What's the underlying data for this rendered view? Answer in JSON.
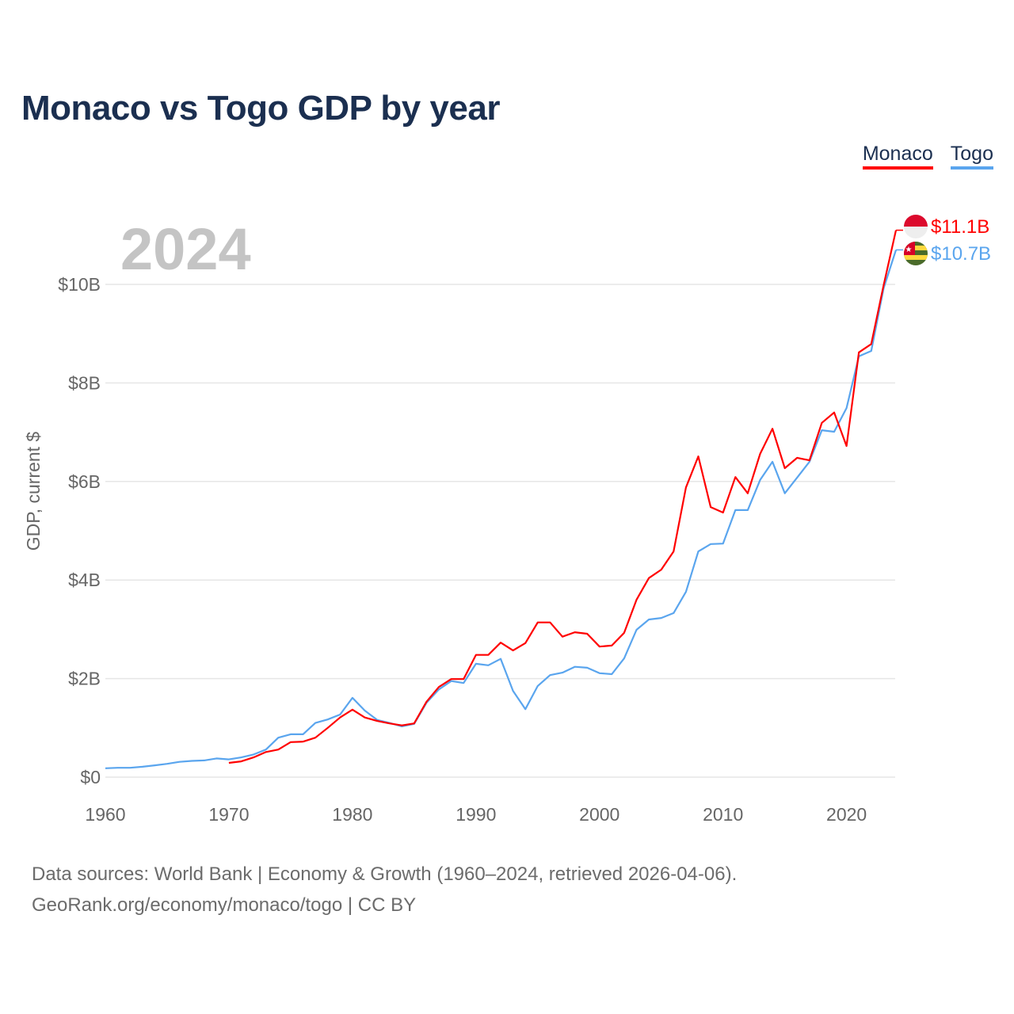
{
  "header": {
    "title": "Monaco vs Togo GDP by year"
  },
  "legend": {
    "monaco": "Monaco",
    "togo": "Togo"
  },
  "current_year": "2024",
  "end_labels": {
    "monaco": "$11.1B",
    "togo": "$10.7B"
  },
  "footer": {
    "line1": "Data sources: World Bank | Economy & Growth (1960–2024, retrieved 2026-04-06).",
    "line2": "GeoRank.org/economy/monaco/togo | CC BY"
  },
  "chart_data": {
    "type": "line",
    "title": "Monaco vs Togo GDP by year",
    "xlabel": "",
    "ylabel": "GDP, current $",
    "xlim": [
      1960,
      2024
    ],
    "ylim": [
      0,
      11.5
    ],
    "x_ticks": [
      1960,
      1970,
      1980,
      1990,
      2000,
      2010,
      2020
    ],
    "x_tick_labels": [
      "1960",
      "1970",
      "1980",
      "1990",
      "2000",
      "2010",
      "2020"
    ],
    "y_ticks": [
      0,
      2,
      4,
      6,
      8,
      10
    ],
    "y_tick_labels": [
      "$0",
      "$2B",
      "$4B",
      "$6B",
      "$8B",
      "$10B"
    ],
    "units": "billions USD",
    "grid": true,
    "legend_position": "top-right",
    "series": [
      {
        "name": "Monaco",
        "color": "#ff0000",
        "start_year": 1970,
        "values": [
          0.29,
          0.32,
          0.4,
          0.51,
          0.56,
          0.71,
          0.72,
          0.8,
          1.0,
          1.21,
          1.37,
          1.21,
          1.14,
          1.09,
          1.05,
          1.09,
          1.53,
          1.83,
          1.99,
          1.99,
          2.48,
          2.48,
          2.73,
          2.57,
          2.72,
          3.14,
          3.14,
          2.85,
          2.94,
          2.91,
          2.65,
          2.67,
          2.93,
          3.6,
          4.04,
          4.21,
          4.58,
          5.88,
          6.51,
          5.48,
          5.37,
          6.09,
          5.76,
          6.56,
          7.07,
          6.27,
          6.48,
          6.43,
          7.19,
          7.4,
          6.72,
          8.62,
          8.79,
          9.98,
          11.1
        ]
      },
      {
        "name": "Togo",
        "color": "#5aa5ee",
        "start_year": 1960,
        "values": [
          0.18,
          0.19,
          0.19,
          0.21,
          0.24,
          0.27,
          0.31,
          0.33,
          0.34,
          0.38,
          0.36,
          0.4,
          0.46,
          0.56,
          0.8,
          0.87,
          0.87,
          1.1,
          1.17,
          1.27,
          1.61,
          1.35,
          1.16,
          1.1,
          1.03,
          1.08,
          1.51,
          1.78,
          1.95,
          1.91,
          2.3,
          2.27,
          2.4,
          1.75,
          1.38,
          1.85,
          2.07,
          2.12,
          2.24,
          2.22,
          2.11,
          2.09,
          2.41,
          2.99,
          3.2,
          3.23,
          3.33,
          3.76,
          4.58,
          4.73,
          4.74,
          5.42,
          5.42,
          6.03,
          6.4,
          5.76,
          6.08,
          6.4,
          7.04,
          7.01,
          7.49,
          8.54,
          8.65,
          9.92,
          10.7
        ]
      }
    ]
  }
}
